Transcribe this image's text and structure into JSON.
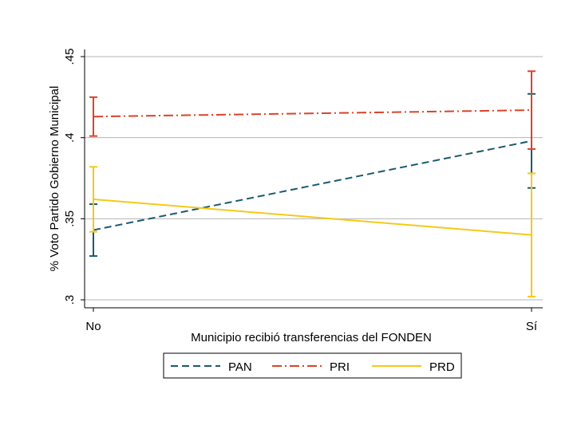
{
  "chart_data": {
    "type": "line",
    "xlabel": "Municipio recibió transferencias del FONDEN",
    "ylabel": "% Voto Partido Gobierno Municipal",
    "categories": [
      "No",
      "Sí"
    ],
    "ylim": [
      0.295,
      0.45
    ],
    "yticks": [
      {
        "value": 0.3,
        "label": ".3"
      },
      {
        "value": 0.35,
        "label": ".35"
      },
      {
        "value": 0.4,
        "label": ".4"
      },
      {
        "value": 0.45,
        "label": ".45"
      }
    ],
    "grid": true,
    "legend_position": "bottom",
    "series": [
      {
        "name": "PAN",
        "color": "#1a5a6e",
        "dash": "dash",
        "values": [
          0.343,
          0.398
        ],
        "ci_low": [
          0.327,
          0.369
        ],
        "ci_high": [
          0.359,
          0.427
        ]
      },
      {
        "name": "PRI",
        "color": "#d9432a",
        "dash": "dashdot",
        "values": [
          0.413,
          0.417
        ],
        "ci_low": [
          0.401,
          0.393
        ],
        "ci_high": [
          0.425,
          0.441
        ]
      },
      {
        "name": "PRD",
        "color": "#f5c918",
        "dash": "solid",
        "values": [
          0.362,
          0.34
        ],
        "ci_low": [
          0.342,
          0.302
        ],
        "ci_high": [
          0.382,
          0.378
        ]
      }
    ]
  }
}
